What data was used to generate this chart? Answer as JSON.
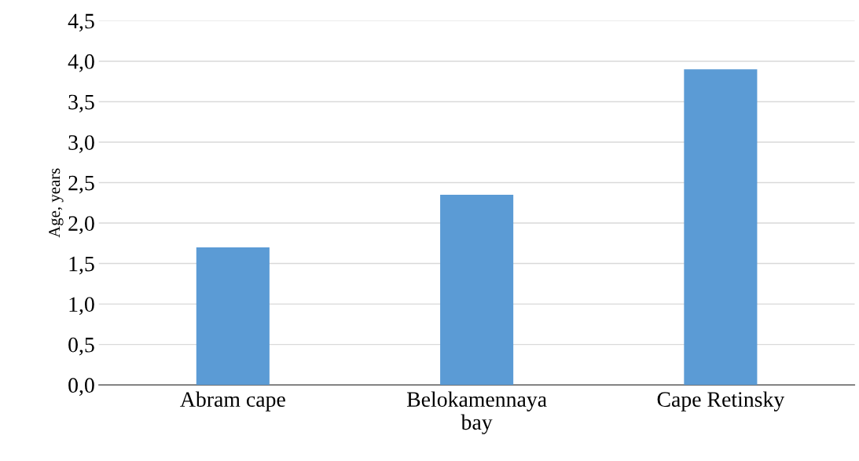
{
  "chart_data": {
    "type": "bar",
    "ylabel": "Age, years",
    "categories": [
      "Abram cape",
      "Belokamennaya\nbay",
      "Cape Retinsky"
    ],
    "values": [
      1.7,
      2.35,
      3.9
    ],
    "color": "#5b9bd5",
    "ylim": [
      0,
      4.5
    ],
    "yticks": [
      {
        "value": 0,
        "label": "0,0"
      },
      {
        "value": 0.5,
        "label": "0,5"
      },
      {
        "value": 1,
        "label": "1,0"
      },
      {
        "value": 1.5,
        "label": "1,5"
      },
      {
        "value": 2,
        "label": "2,0"
      },
      {
        "value": 2.5,
        "label": "2,5"
      },
      {
        "value": 3,
        "label": "3,0"
      },
      {
        "value": 3.5,
        "label": "3,5"
      },
      {
        "value": 4,
        "label": "4,0"
      },
      {
        "value": 4.5,
        "label": "4,5"
      }
    ],
    "grid": "y"
  }
}
